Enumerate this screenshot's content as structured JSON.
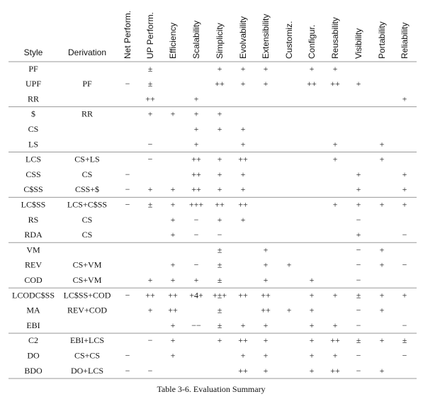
{
  "table": {
    "columns": [
      "Style",
      "Derivation",
      "Net Perform.",
      "UP Perform.",
      "Efficiency",
      "Scalability",
      "Simplicity",
      "Evolvability",
      "Extensibility",
      "Customiz.",
      "Configur.",
      "Reusability",
      "Visibility",
      "Portability",
      "Reliability"
    ],
    "rows": [
      [
        "PF",
        null,
        null,
        "±",
        null,
        null,
        "+",
        "+",
        "+",
        null,
        "+",
        "+",
        null,
        null,
        null
      ],
      [
        "UPF",
        "PF",
        "−",
        "±",
        null,
        null,
        "++",
        "+",
        "+",
        null,
        "++",
        "++",
        "+",
        null,
        null
      ],
      [
        "RR",
        null,
        null,
        "++",
        null,
        "+",
        null,
        null,
        null,
        null,
        null,
        null,
        null,
        null,
        "+"
      ],
      [
        "$",
        "RR",
        null,
        "+",
        "+",
        "+",
        "+",
        null,
        null,
        null,
        null,
        null,
        null,
        null,
        null
      ],
      [
        "CS",
        null,
        null,
        null,
        null,
        "+",
        "+",
        "+",
        null,
        null,
        null,
        null,
        null,
        null,
        null
      ],
      [
        "LS",
        null,
        null,
        "−",
        null,
        "+",
        null,
        "+",
        null,
        null,
        null,
        "+",
        null,
        "+",
        null
      ],
      [
        "LCS",
        "CS+LS",
        null,
        "−",
        null,
        "++",
        "+",
        "++",
        null,
        null,
        null,
        "+",
        null,
        "+",
        null
      ],
      [
        "CSS",
        "CS",
        "−",
        null,
        null,
        "++",
        "+",
        "+",
        null,
        null,
        null,
        null,
        "+",
        null,
        "+"
      ],
      [
        "C$SS",
        "CSS+$",
        "−",
        "+",
        "+",
        "++",
        "+",
        "+",
        null,
        null,
        null,
        null,
        "+",
        null,
        "+"
      ],
      [
        "LC$SS",
        "LCS+C$SS",
        "−",
        "±",
        "+",
        "+++",
        "++",
        "++",
        null,
        null,
        null,
        "+",
        "+",
        "+",
        "+"
      ],
      [
        "RS",
        "CS",
        null,
        null,
        "+",
        "−",
        "+",
        "+",
        null,
        null,
        null,
        null,
        "−",
        null,
        null
      ],
      [
        "RDA",
        "CS",
        null,
        null,
        "+",
        "−",
        "−",
        null,
        null,
        null,
        null,
        null,
        "+",
        null,
        "−"
      ],
      [
        "VM",
        null,
        null,
        null,
        null,
        null,
        "±",
        null,
        "+",
        null,
        null,
        null,
        "−",
        "+",
        null
      ],
      [
        "REV",
        "CS+VM",
        null,
        null,
        "+",
        "−",
        "±",
        null,
        "+",
        "+",
        null,
        null,
        "−",
        "+",
        "−"
      ],
      [
        "COD",
        "CS+VM",
        null,
        "+",
        "+",
        "+",
        "±",
        null,
        "+",
        null,
        "+",
        null,
        "−",
        null,
        null
      ],
      [
        "LCODC$SS",
        "LC$SS+COD",
        "−",
        "++",
        "++",
        "+4+",
        "+±+",
        "++",
        "++",
        null,
        "+",
        "+",
        "±",
        "+",
        "+"
      ],
      [
        "MA",
        "REV+COD",
        null,
        "+",
        "++",
        null,
        "±",
        null,
        "++",
        "+",
        "+",
        null,
        "−",
        "+",
        null
      ],
      [
        "EBI",
        null,
        null,
        null,
        "+",
        "−−",
        "±",
        "+",
        "+",
        null,
        "+",
        "+",
        "−",
        null,
        "−"
      ],
      [
        "C2",
        "EBI+LCS",
        null,
        "−",
        "+",
        null,
        "+",
        "++",
        "+",
        null,
        "+",
        "++",
        "±",
        "+",
        "±"
      ],
      [
        "DO",
        "CS+CS",
        "−",
        null,
        "+",
        null,
        null,
        "+",
        "+",
        null,
        "+",
        "+",
        "−",
        null,
        "−"
      ],
      [
        "BDO",
        "DO+LCS",
        "−",
        "−",
        null,
        null,
        null,
        "++",
        "+",
        null,
        "+",
        "++",
        "−",
        "+",
        null
      ]
    ]
  },
  "caption": "Table 3-6. Evaluation Summary"
}
